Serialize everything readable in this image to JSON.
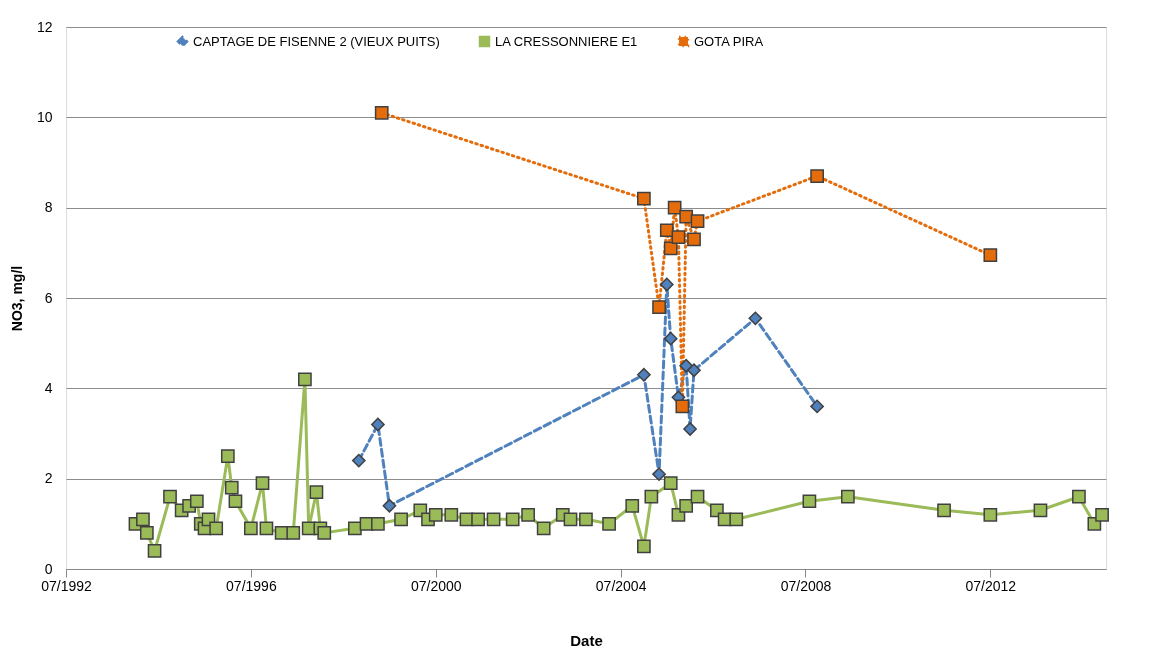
{
  "chart_data": {
    "type": "line",
    "xlabel": "Date",
    "ylabel": "NO3, mg/l",
    "xlim": [
      "1992-07",
      "2015-01"
    ],
    "xticks": [
      {
        "value": "1992-07",
        "label": "07/1992"
      },
      {
        "value": "1996-07",
        "label": "07/1996"
      },
      {
        "value": "2000-07",
        "label": "07/2000"
      },
      {
        "value": "2004-07",
        "label": "07/2004"
      },
      {
        "value": "2008-07",
        "label": "07/2008"
      },
      {
        "value": "2012-07",
        "label": "07/2012"
      }
    ],
    "ylim": [
      0,
      12
    ],
    "yticks": [
      0,
      2,
      4,
      6,
      8,
      10,
      12
    ],
    "grid": "y",
    "legend": "top",
    "series": [
      {
        "name": "CAPTAGE DE FISENNE 2 (VIEUX PUITS)",
        "color": "#4f81bd",
        "marker": "diamond",
        "line_style": "dashed",
        "x": [
          "1998-11",
          "1999-04",
          "1999-07",
          "2005-01",
          "2005-05",
          "2005-07",
          "2005-08",
          "2005-10",
          "2005-12",
          "2006-01",
          "2006-02",
          "2007-06",
          "2008-10"
        ],
        "values": [
          2.4,
          3.2,
          1.4,
          4.3,
          2.1,
          6.3,
          5.1,
          3.8,
          4.5,
          3.1,
          4.4,
          5.55,
          3.6
        ]
      },
      {
        "name": "LA CRESSONNIERE E1",
        "color": "#9bbb59",
        "marker": "square",
        "line_style": "solid",
        "x": [
          "1994-01",
          "1994-03",
          "1994-04",
          "1994-06",
          "1994-10",
          "1995-01",
          "1995-03",
          "1995-05",
          "1995-06",
          "1995-07",
          "1995-08",
          "1995-10",
          "1996-01",
          "1996-02",
          "1996-03",
          "1996-07",
          "1996-10",
          "1996-11",
          "1997-03",
          "1997-06",
          "1997-09",
          "1997-10",
          "1997-12",
          "1998-01",
          "1998-02",
          "1998-10",
          "1999-01",
          "1999-04",
          "1999-10",
          "2000-03",
          "2000-05",
          "2000-07",
          "2000-11",
          "2001-03",
          "2001-06",
          "2001-10",
          "2002-03",
          "2002-07",
          "2002-11",
          "2003-04",
          "2003-06",
          "2003-10",
          "2004-04",
          "2004-10",
          "2005-01",
          "2005-03",
          "2005-08",
          "2005-10",
          "2005-12",
          "2006-03",
          "2006-08",
          "2006-10",
          "2007-01",
          "2008-08",
          "2009-06",
          "2011-07",
          "2012-07",
          "2013-08",
          "2014-06",
          "2014-10",
          "2014-12"
        ],
        "values": [
          1.0,
          1.1,
          0.8,
          0.4,
          1.6,
          1.3,
          1.4,
          1.5,
          1.0,
          0.9,
          1.1,
          0.9,
          2.5,
          1.8,
          1.5,
          0.9,
          1.9,
          0.9,
          0.8,
          0.8,
          4.2,
          0.9,
          1.7,
          0.9,
          0.8,
          0.9,
          1.0,
          1.0,
          1.1,
          1.3,
          1.1,
          1.2,
          1.2,
          1.1,
          1.1,
          1.1,
          1.1,
          1.2,
          0.9,
          1.2,
          1.1,
          1.1,
          1.0,
          1.4,
          0.5,
          1.6,
          1.9,
          1.2,
          1.4,
          1.6,
          1.3,
          1.1,
          1.1,
          1.5,
          1.6,
          1.3,
          1.2,
          1.3,
          1.6,
          1.0,
          1.2
        ]
      },
      {
        "name": "GOTA PIRA",
        "color": "#e46c0a",
        "marker": "square",
        "line_style": "dotted",
        "x": [
          "1999-05",
          "2005-01",
          "2005-05",
          "2005-07",
          "2005-08",
          "2005-09",
          "2005-10",
          "2005-11",
          "2005-12",
          "2006-02",
          "2006-03",
          "2008-10",
          "2012-07"
        ],
        "values": [
          10.1,
          8.2,
          5.8,
          7.5,
          7.1,
          8.0,
          7.35,
          3.6,
          7.8,
          7.3,
          7.7,
          8.7,
          6.95
        ]
      }
    ]
  }
}
